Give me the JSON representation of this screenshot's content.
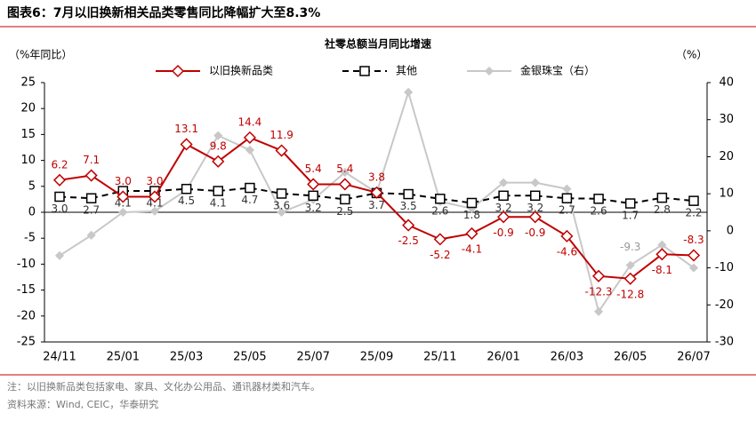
{
  "title": "图表6：7月以旧换新相关品类零售同比降幅扩大至8.3%",
  "chart_data": {
    "type": "line",
    "title": "社零总额当月同比增速",
    "ylabel": "（%年同比）",
    "y2label": "（%）",
    "categories": [
      "24/11",
      null,
      "25/01",
      null,
      "25/03",
      null,
      "25/05",
      null,
      "25/07",
      null,
      "25/09",
      null,
      "25/11",
      null,
      "26/01",
      null,
      "26/03",
      null,
      "26/05",
      null,
      "26/07"
    ],
    "ylim": [
      -25,
      25
    ],
    "yticks": [
      -25,
      -20,
      -15,
      -10,
      -5,
      0,
      5,
      10,
      15,
      20,
      25
    ],
    "y2lim": [
      -30,
      40
    ],
    "y2ticks": [
      -30,
      -20,
      -10,
      0,
      10,
      20,
      30,
      40
    ],
    "series": [
      {
        "name": "以旧换新品类",
        "color": "#c00000",
        "marker": "diamond",
        "values": [
          6.2,
          7.1,
          3.0,
          3.0,
          13.1,
          9.8,
          14.4,
          11.9,
          5.4,
          5.4,
          3.8,
          -2.5,
          -5.2,
          -4.1,
          -0.9,
          -0.9,
          -4.6,
          -12.3,
          -12.8,
          -8.1,
          -8.3
        ],
        "value_labels": [
          "6.2",
          "7.1",
          "3.0",
          "3.0",
          "13.1",
          "9.8",
          "14.4",
          "11.9",
          "5.4",
          "5.4",
          "3.8",
          "-2.5",
          "-5.2",
          "-4.1",
          "-0.9",
          "-0.9",
          "-4.6",
          "-12.3",
          "-12.8",
          "-8.1",
          "-8.3"
        ]
      },
      {
        "name": "其他",
        "color": "#000000",
        "marker": "square",
        "dashed": true,
        "values": [
          3.0,
          2.7,
          4.1,
          4.1,
          4.5,
          4.1,
          4.7,
          3.6,
          3.2,
          2.5,
          3.7,
          3.5,
          2.6,
          1.8,
          3.2,
          3.2,
          2.7,
          2.6,
          1.7,
          2.8,
          2.2
        ],
        "value_labels": [
          "3.0",
          "2.7",
          "4.1",
          "4.1",
          "4.5",
          "4.1",
          "4.7",
          "3.6",
          "3.2",
          "2.5",
          "3.7",
          "3.5",
          "2.6",
          "1.8",
          "3.2",
          "3.2",
          "2.7",
          "2.6",
          "1.7",
          "2.8",
          "2.2"
        ]
      },
      {
        "name": "金银珠宝（右）",
        "color": "#c8c8c8",
        "marker": "smalldiamond",
        "axis": "y2",
        "values": [
          -6.7,
          -1.2,
          5.0,
          5.3,
          11.0,
          25.7,
          21.8,
          5.0,
          8.4,
          15.8,
          10.3,
          37.4,
          7.9,
          6.0,
          13.0,
          13.0,
          11.3,
          -21.8,
          -9.3,
          -3.8,
          -10.0
        ],
        "value_labels": [
          null,
          null,
          null,
          null,
          null,
          null,
          null,
          null,
          null,
          null,
          null,
          null,
          null,
          null,
          null,
          null,
          null,
          null,
          "-9.3",
          null,
          null
        ]
      }
    ]
  },
  "notes": [
    "注：以旧换新品类包括家电、家具、文化办公用品、通讯器材类和汽车。",
    "资料来源：Wind, CEIC，华泰研究"
  ]
}
